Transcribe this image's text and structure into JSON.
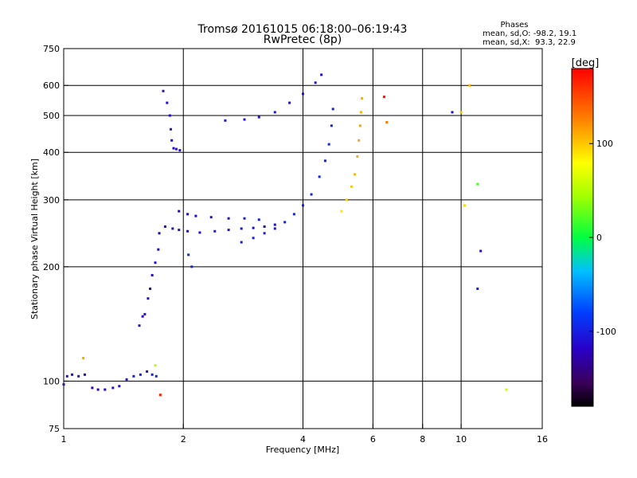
{
  "chart_data": {
    "type": "scatter",
    "title": "Tromsø 20161015 06:18:00–06:19:43",
    "subtitle": "RwPretec (8p)",
    "xlabel": "Frequency [MHz]",
    "ylabel": "Stationary phase Virtual Height [km]",
    "x_scale": "log",
    "y_scale": "log",
    "xlim": [
      1,
      16
    ],
    "ylim": [
      75,
      750
    ],
    "x_ticks": [
      1,
      2,
      4,
      6,
      8,
      10,
      16
    ],
    "x_tick_labels": [
      "1",
      "2",
      "4",
      "6",
      "8",
      "10",
      "16"
    ],
    "y_ticks": [
      75,
      100,
      200,
      300,
      400,
      500,
      600,
      750
    ],
    "y_tick_labels": [
      "75",
      "100",
      "200",
      "300",
      "400",
      "500",
      "600",
      "750"
    ],
    "grid": true,
    "stats_box": {
      "title": "Phases",
      "line1": "mean, sd,O: -98.2, 19.1",
      "line2": "mean, sd,X:  93.3, 22.9"
    },
    "colorbar": {
      "label": "[deg]",
      "range": [
        -180,
        180
      ],
      "ticks": [
        100,
        0,
        -100
      ],
      "tick_labels": [
        "100",
        "0",
        "-100"
      ],
      "colormap": "rainbow"
    },
    "series": [
      {
        "points": [
          [
            1.0,
            98,
            -110
          ],
          [
            1.02,
            103,
            -105
          ],
          [
            1.05,
            104,
            -120
          ],
          [
            1.09,
            103,
            -108
          ],
          [
            1.13,
            104,
            -115
          ],
          [
            1.18,
            96,
            -125
          ],
          [
            1.22,
            95,
            -120
          ],
          [
            1.27,
            95,
            -118
          ],
          [
            1.33,
            96,
            -110
          ],
          [
            1.38,
            97,
            -112
          ],
          [
            1.44,
            101,
            -108
          ],
          [
            1.5,
            103,
            -100
          ],
          [
            1.56,
            104,
            -105
          ],
          [
            1.62,
            106,
            -110
          ],
          [
            1.67,
            104,
            -100
          ],
          [
            1.71,
            103,
            -95
          ],
          [
            1.55,
            140,
            -115
          ],
          [
            1.58,
            148,
            -120
          ],
          [
            1.6,
            150,
            -110
          ],
          [
            1.63,
            165,
            -108
          ],
          [
            1.65,
            175,
            -112
          ],
          [
            1.67,
            190,
            -115
          ],
          [
            1.7,
            205,
            -110
          ],
          [
            1.73,
            222,
            -118
          ],
          [
            1.74,
            245,
            -120
          ],
          [
            1.8,
            255,
            -115
          ],
          [
            1.88,
            252,
            -110
          ],
          [
            1.95,
            250,
            -112
          ],
          [
            2.05,
            248,
            -115
          ],
          [
            2.2,
            246,
            -110
          ],
          [
            2.4,
            248,
            -105
          ],
          [
            2.6,
            250,
            -108
          ],
          [
            2.8,
            252,
            -104
          ],
          [
            3.0,
            253,
            -108
          ],
          [
            3.2,
            255,
            -112
          ],
          [
            3.4,
            258,
            -110
          ],
          [
            1.78,
            580,
            -108
          ],
          [
            1.82,
            540,
            -112
          ],
          [
            1.85,
            500,
            -110
          ],
          [
            1.86,
            460,
            -105
          ],
          [
            1.87,
            430,
            -110
          ],
          [
            1.89,
            410,
            -112
          ],
          [
            1.92,
            408,
            -108
          ],
          [
            1.96,
            405,
            -110
          ],
          [
            1.95,
            280,
            -120
          ],
          [
            2.05,
            275,
            -118
          ],
          [
            2.15,
            272,
            -115
          ],
          [
            2.35,
            270,
            -112
          ],
          [
            2.6,
            268,
            -110
          ],
          [
            2.85,
            268,
            -105
          ],
          [
            3.1,
            266,
            -100
          ],
          [
            2.55,
            485,
            -105
          ],
          [
            2.85,
            488,
            -110
          ],
          [
            3.1,
            495,
            -108
          ],
          [
            3.4,
            510,
            -105
          ],
          [
            3.7,
            540,
            -110
          ],
          [
            4.0,
            570,
            -108
          ],
          [
            4.3,
            610,
            -105
          ],
          [
            4.45,
            640,
            -110
          ],
          [
            2.8,
            232,
            -100
          ],
          [
            3.0,
            238,
            -95
          ],
          [
            3.2,
            245,
            -100
          ],
          [
            3.4,
            252,
            -105
          ],
          [
            3.6,
            262,
            -100
          ],
          [
            3.8,
            275,
            -98
          ],
          [
            4.0,
            290,
            -100
          ],
          [
            4.2,
            310,
            -98
          ],
          [
            4.4,
            345,
            -95
          ],
          [
            4.55,
            380,
            -100
          ],
          [
            4.65,
            420,
            -98
          ],
          [
            4.72,
            470,
            -100
          ],
          [
            4.76,
            520,
            -98
          ],
          [
            5.0,
            280,
            90
          ],
          [
            5.15,
            300,
            95
          ],
          [
            5.3,
            325,
            100
          ],
          [
            5.4,
            350,
            105
          ],
          [
            5.48,
            390,
            110
          ],
          [
            5.53,
            430,
            112
          ],
          [
            5.57,
            470,
            115
          ],
          [
            5.6,
            510,
            108
          ],
          [
            5.63,
            555,
            110
          ],
          [
            2.1,
            200,
            -100
          ],
          [
            2.06,
            215,
            -95
          ],
          [
            10.0,
            510,
            100
          ],
          [
            10.2,
            290,
            95
          ],
          [
            9.5,
            510,
            -110
          ],
          [
            10.5,
            600,
            110
          ],
          [
            6.4,
            560,
            170
          ],
          [
            6.5,
            480,
            130
          ],
          [
            11.0,
            330,
            20
          ],
          [
            11.2,
            220,
            -110
          ],
          [
            11.0,
            175,
            -100
          ],
          [
            13.0,
            95,
            60
          ],
          [
            1.12,
            115,
            110
          ],
          [
            1.7,
            110,
            50
          ],
          [
            1.75,
            92,
            170
          ]
        ]
      }
    ]
  }
}
